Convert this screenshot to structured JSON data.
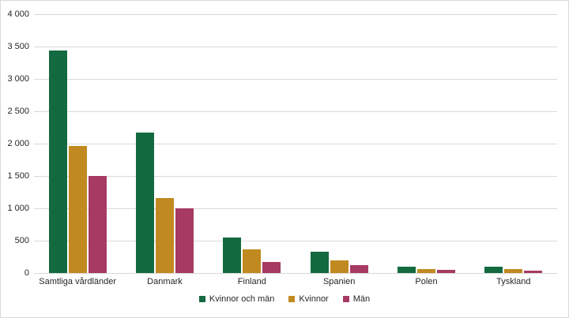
{
  "chart_data": {
    "type": "bar",
    "title": "",
    "xlabel": "",
    "ylabel": "",
    "categories": [
      "Samtliga vårdländer",
      "Danmark",
      "Finland",
      "Spanien",
      "Polen",
      "Tyskland"
    ],
    "series": [
      {
        "name": "Kvinnor och män",
        "color": "#146A40",
        "values": [
          3440,
          2170,
          545,
          325,
          100,
          95
        ]
      },
      {
        "name": "Kvinnor",
        "color": "#C18A20",
        "values": [
          1960,
          1160,
          370,
          195,
          65,
          55
        ]
      },
      {
        "name": "Män",
        "color": "#A73A62",
        "values": [
          1500,
          1000,
          170,
          120,
          45,
          40
        ]
      }
    ],
    "ylim": [
      0,
      4000
    ],
    "ytick_step": 500,
    "ytick_labels": [
      "0",
      "500",
      "1 000",
      "1 500",
      "2 000",
      "2 500",
      "3 000",
      "3 500",
      "4 000"
    ],
    "grid": true,
    "legend_position": "bottom",
    "colors": {
      "gridline": "#D9D9D9",
      "axis_text": "#262626",
      "border": "#D9D9D9",
      "background": "#FFFFFF"
    }
  }
}
